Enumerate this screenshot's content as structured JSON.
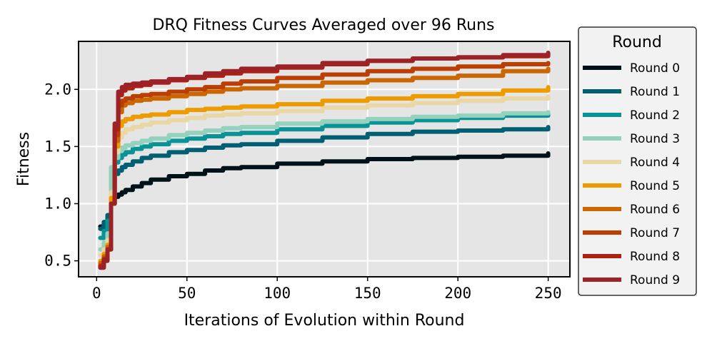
{
  "chart_data": {
    "type": "line",
    "title": "DRQ Fitness Curves Averaged over 96 Runs",
    "xlabel": "Iterations of Evolution within Round",
    "ylabel": "Fitness",
    "xlim": [
      -10,
      262
    ],
    "ylim": [
      0.36,
      2.42
    ],
    "xticks": [
      0,
      50,
      100,
      150,
      200,
      250
    ],
    "xtick_labels": [
      "0",
      "50",
      "100",
      "150",
      "200",
      "250"
    ],
    "yticks": [
      0.5,
      1.0,
      1.5,
      2.0
    ],
    "ytick_labels": [
      "0.5",
      "1.0",
      "1.5",
      "2.0"
    ],
    "grid": true,
    "legend": {
      "title": "Round",
      "placement": "outside-right"
    },
    "x": [
      2,
      4,
      6,
      8,
      10,
      12,
      14,
      16,
      20,
      25,
      30,
      40,
      50,
      60,
      70,
      80,
      100,
      125,
      150,
      175,
      200,
      225,
      250
    ],
    "series": [
      {
        "name": "Round 0",
        "color": "#001219",
        "values": [
          0.8,
          0.82,
          0.85,
          1.03,
          1.06,
          1.08,
          1.1,
          1.12,
          1.15,
          1.18,
          1.21,
          1.24,
          1.26,
          1.29,
          1.31,
          1.32,
          1.35,
          1.37,
          1.39,
          1.4,
          1.41,
          1.42,
          1.44
        ]
      },
      {
        "name": "Round 1",
        "color": "#005f73",
        "values": [
          0.78,
          0.84,
          0.9,
          1.2,
          1.26,
          1.29,
          1.32,
          1.34,
          1.37,
          1.4,
          1.42,
          1.45,
          1.47,
          1.49,
          1.51,
          1.52,
          1.55,
          1.58,
          1.61,
          1.63,
          1.64,
          1.65,
          1.67
        ]
      },
      {
        "name": "Round 2",
        "color": "#0a9396",
        "values": [
          0.7,
          0.76,
          0.85,
          1.3,
          1.36,
          1.4,
          1.43,
          1.45,
          1.48,
          1.5,
          1.52,
          1.55,
          1.57,
          1.59,
          1.61,
          1.62,
          1.65,
          1.68,
          1.71,
          1.73,
          1.75,
          1.77,
          1.79
        ]
      },
      {
        "name": "Round 3",
        "color": "#94d2bd",
        "values": [
          0.6,
          0.66,
          0.74,
          1.32,
          1.4,
          1.46,
          1.49,
          1.51,
          1.53,
          1.55,
          1.57,
          1.6,
          1.62,
          1.64,
          1.66,
          1.67,
          1.7,
          1.72,
          1.74,
          1.76,
          1.77,
          1.79,
          1.8
        ]
      },
      {
        "name": "Round 4",
        "color": "#e9d8a6",
        "values": [
          0.55,
          0.6,
          0.68,
          1.1,
          1.45,
          1.58,
          1.62,
          1.65,
          1.67,
          1.69,
          1.71,
          1.73,
          1.75,
          1.77,
          1.78,
          1.79,
          1.81,
          1.84,
          1.86,
          1.88,
          1.9,
          1.92,
          1.94
        ]
      },
      {
        "name": "Round 5",
        "color": "#ee9b00",
        "values": [
          0.5,
          0.56,
          0.64,
          1.05,
          1.5,
          1.68,
          1.72,
          1.74,
          1.76,
          1.77,
          1.78,
          1.8,
          1.82,
          1.83,
          1.84,
          1.85,
          1.87,
          1.9,
          1.92,
          1.94,
          1.96,
          1.99,
          2.02
        ]
      },
      {
        "name": "Round 6",
        "color": "#ca6702",
        "values": [
          0.48,
          0.54,
          0.62,
          1.0,
          1.55,
          1.8,
          1.86,
          1.88,
          1.9,
          1.91,
          1.92,
          1.94,
          1.96,
          1.98,
          2.0,
          2.01,
          2.03,
          2.06,
          2.08,
          2.1,
          2.12,
          2.16,
          2.18
        ]
      },
      {
        "name": "Round 7",
        "color": "#bb3e03",
        "values": [
          0.46,
          0.52,
          0.6,
          1.0,
          1.6,
          1.86,
          1.9,
          1.92,
          1.94,
          1.95,
          1.96,
          1.98,
          2.0,
          2.02,
          2.05,
          2.07,
          2.1,
          2.13,
          2.16,
          2.18,
          2.2,
          2.22,
          2.23
        ]
      },
      {
        "name": "Round 8",
        "color": "#ae2012",
        "values": [
          0.45,
          0.51,
          0.6,
          1.0,
          1.65,
          1.95,
          1.99,
          2.01,
          2.03,
          2.04,
          2.06,
          2.08,
          2.1,
          2.12,
          2.14,
          2.16,
          2.19,
          2.22,
          2.25,
          2.27,
          2.28,
          2.29,
          2.31
        ]
      },
      {
        "name": "Round 9",
        "color": "#9b2226",
        "values": [
          0.44,
          0.5,
          0.6,
          1.0,
          1.7,
          1.98,
          2.02,
          2.04,
          2.05,
          2.06,
          2.07,
          2.09,
          2.11,
          2.14,
          2.16,
          2.18,
          2.2,
          2.23,
          2.25,
          2.27,
          2.28,
          2.3,
          2.32
        ]
      }
    ]
  }
}
